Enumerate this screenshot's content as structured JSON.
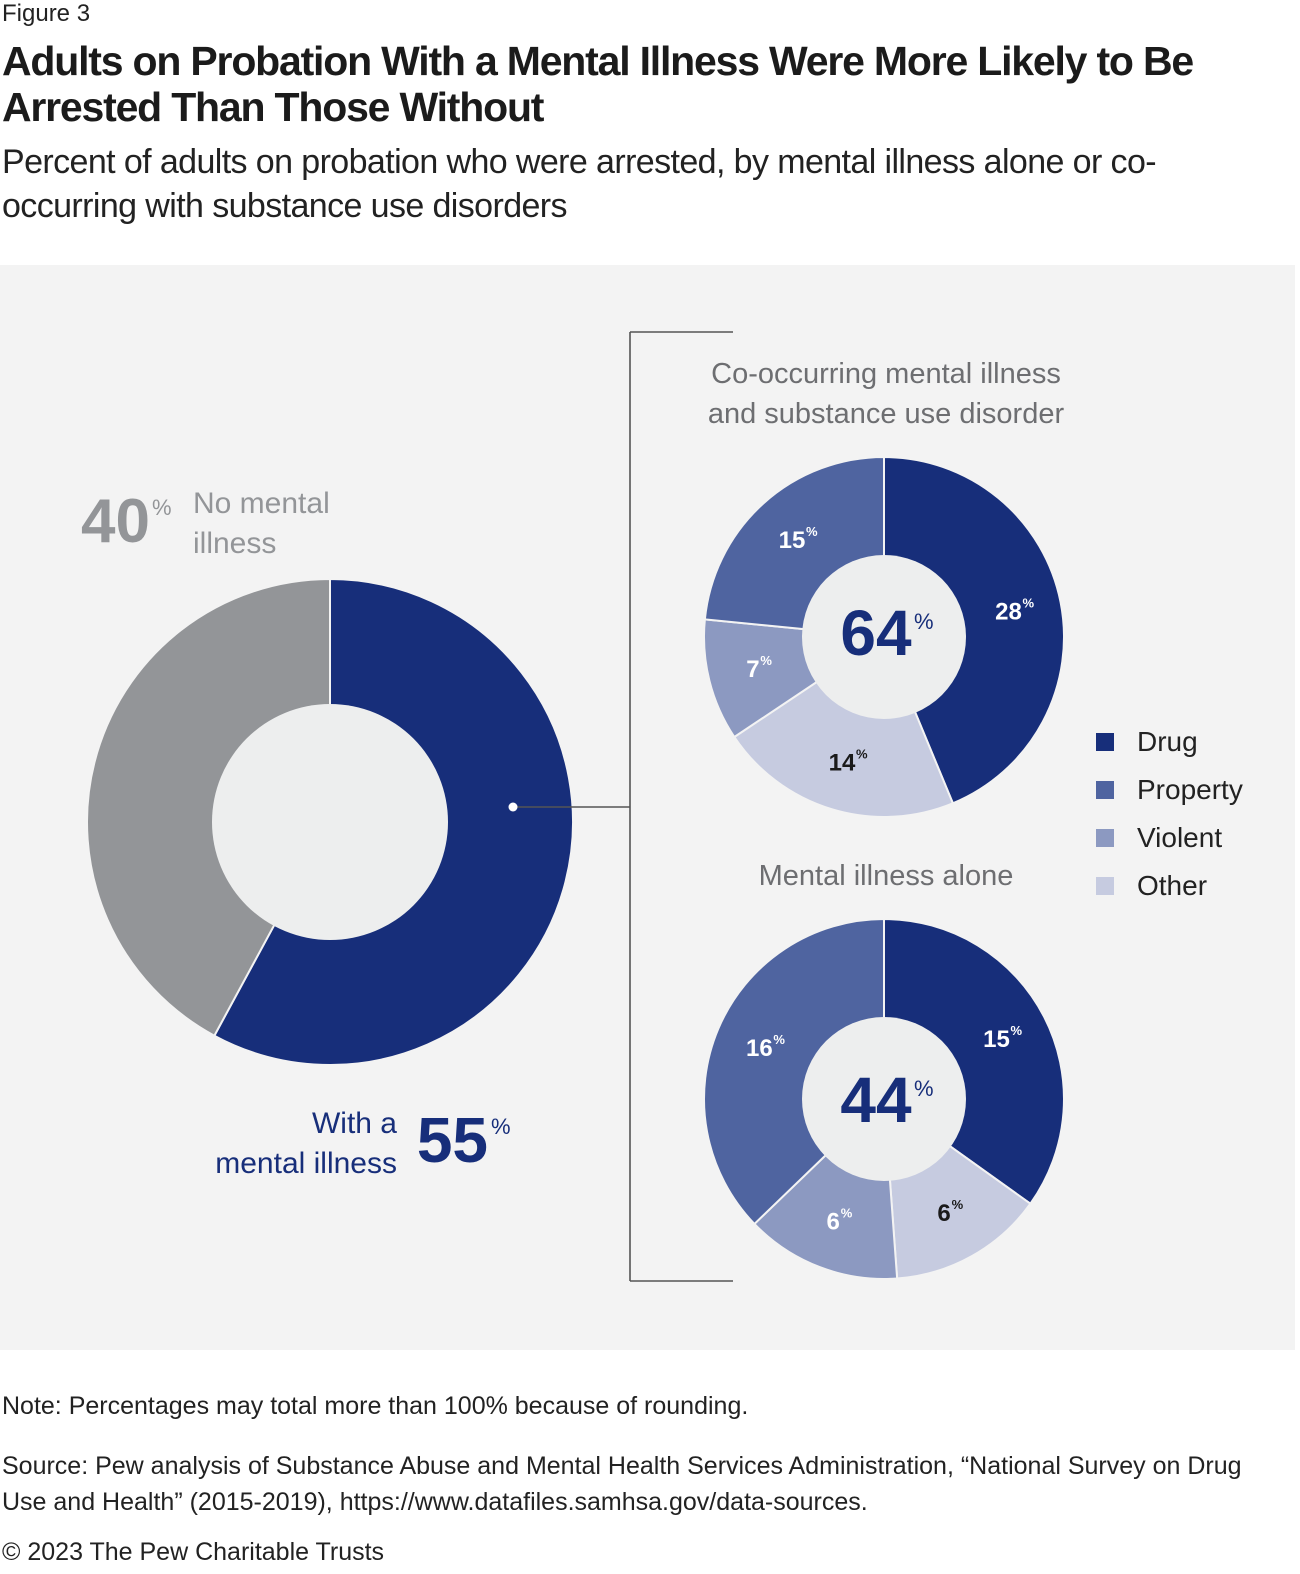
{
  "figure_label": "Figure 3",
  "title": "Adults on Probation With a Mental Illness Were More Likely to Be Arrested Than Those Without",
  "subtitle": "Percent of adults on probation who were arrested, by mental illness alone or co-occurring with substance use disorders",
  "chart_data": [
    {
      "type": "pie",
      "title": "",
      "slices": [
        {
          "label": "With a mental illness",
          "value": 55,
          "display": "55",
          "color": "#172e7a"
        },
        {
          "label": "No mental illness",
          "value": 40,
          "display": "40",
          "color": "#939598"
        }
      ],
      "labels": {
        "with_line1": "With a",
        "with_line2": "mental illness",
        "no_line1": "No mental",
        "no_line2": "illness",
        "percent_sign": "%"
      }
    },
    {
      "type": "pie",
      "title": "Co-occurring mental illness and substance use disorder",
      "title_lines": [
        "Co-occurring mental illness",
        "and substance use disorder"
      ],
      "center_value": "64",
      "slices": [
        {
          "label": "Drug",
          "value": 28,
          "display": "28"
        },
        {
          "label": "Other",
          "value": 14,
          "display": "14"
        },
        {
          "label": "Violent",
          "value": 7,
          "display": "7"
        },
        {
          "label": "Property",
          "value": 15,
          "display": "15"
        }
      ]
    },
    {
      "type": "pie",
      "title": "Mental illness alone",
      "title_lines": [
        "Mental illness alone"
      ],
      "center_value": "44",
      "slices": [
        {
          "label": "Drug",
          "value": 15,
          "display": "15"
        },
        {
          "label": "Other",
          "value": 6,
          "display": "6"
        },
        {
          "label": "Violent",
          "value": 6,
          "display": "6"
        },
        {
          "label": "Property",
          "value": 16,
          "display": "16"
        }
      ]
    }
  ],
  "legend": [
    {
      "label": "Drug",
      "color": "#172e7a"
    },
    {
      "label": "Property",
      "color": "#4f64a0"
    },
    {
      "label": "Violent",
      "color": "#8c99c1"
    },
    {
      "label": "Other",
      "color": "#c6cbe0"
    }
  ],
  "note": "Note: Percentages may total more than 100% because of rounding.",
  "source": "Source: Pew analysis of Substance Abuse and Mental Health Services Administration, “National Survey on Drug Use and Health” (2015-2019), https://www.datafiles.samhsa.gov/data-sources.",
  "copyright": "© 2023 The Pew Charitable Trusts"
}
